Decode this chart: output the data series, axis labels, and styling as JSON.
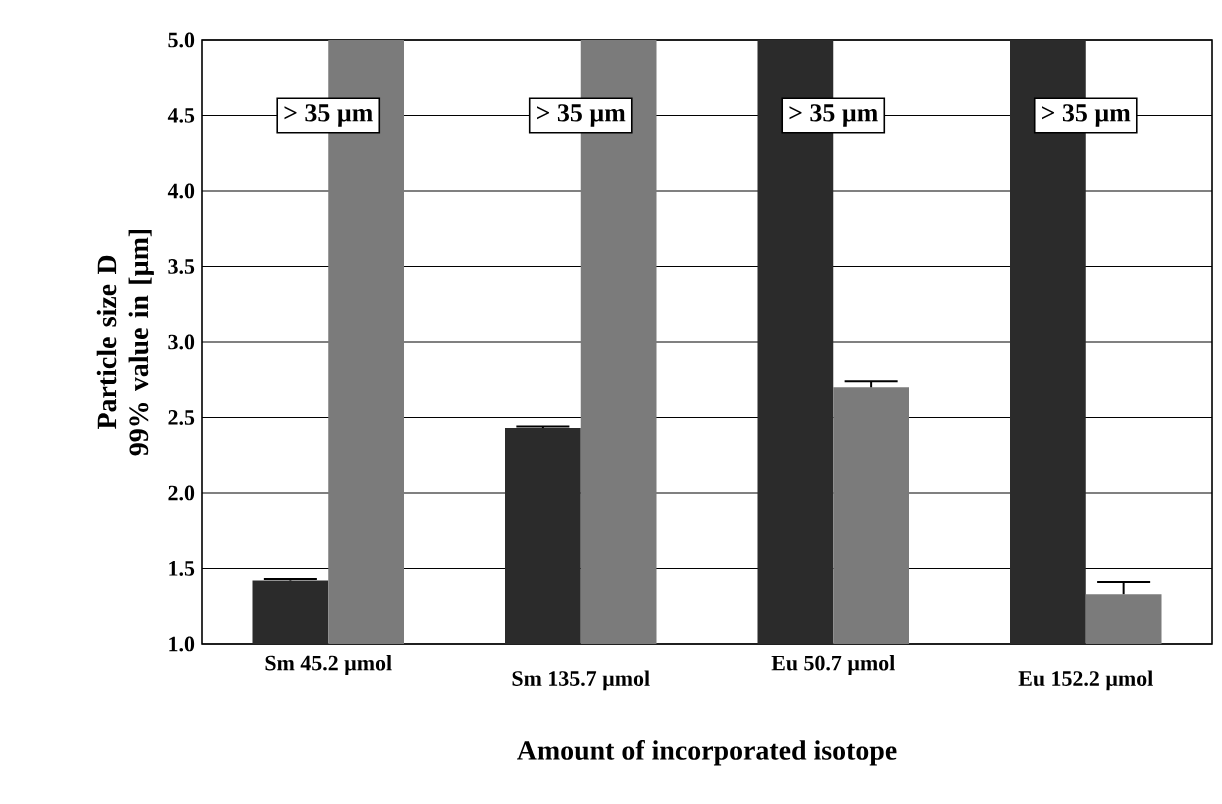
{
  "chart_data": {
    "type": "bar",
    "xlabel": "Amount of incorporated isotope",
    "ylabel": "Particle size D 99% value in [µm]",
    "categories": [
      "Sm 45.2 µmol",
      "Sm 135.7 µmol",
      "Eu 50.7 µmol",
      "Eu 152.2 µmol"
    ],
    "series": [
      {
        "color": "#2b2b2b",
        "values": [
          1.42,
          2.43,
          5.0,
          5.0
        ],
        "errors": [
          [
            1.42,
            1.43
          ],
          [
            2.43,
            2.44
          ],
          null,
          null
        ]
      },
      {
        "color": "#7b7b7b",
        "values": [
          5.0,
          5.0,
          2.7,
          1.33
        ],
        "errors": [
          null,
          null,
          [
            2.7,
            2.74
          ],
          [
            1.33,
            1.41
          ]
        ]
      }
    ],
    "ylim": [
      1.0,
      5.0
    ],
    "yticks": [
      {
        "value": 1.0,
        "label": "1.0"
      },
      {
        "value": 1.5,
        "label": "1.5"
      },
      {
        "value": 2.0,
        "label": "2.0"
      },
      {
        "value": 2.5,
        "label": "2.5"
      },
      {
        "value": 3.0,
        "label": "3.0"
      },
      {
        "value": 3.5,
        "label": "3.5"
      },
      {
        "value": 4.0,
        "label": "4.0"
      },
      {
        "value": 4.5,
        "label": "4.5"
      },
      {
        "value": 5.0,
        "label": "5.0"
      }
    ],
    "grid": "y",
    "annotations": [
      {
        "text": "> 35 µm",
        "x": "Sm 45.2 µmol",
        "y": 4.5
      },
      {
        "text": "> 35 µm",
        "x": "Sm 135.7 µmol",
        "y": 4.5
      },
      {
        "text": "> 35 µm",
        "x": "Eu 50.7 µmol",
        "y": 4.5
      },
      {
        "text": "> 35 µm",
        "x": "Eu 152.2 µmol",
        "y": 4.5
      }
    ]
  }
}
